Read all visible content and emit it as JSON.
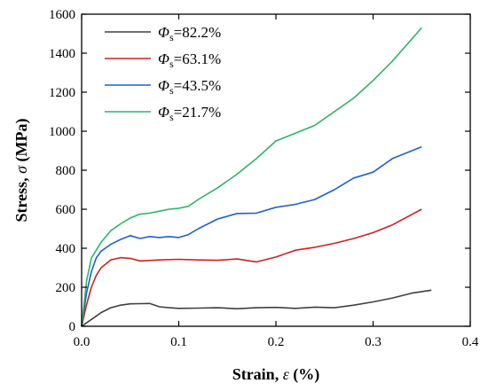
{
  "chart_data": {
    "type": "line",
    "xlabel": {
      "prefix": "Strain,  ",
      "symbol": "ε",
      "suffix": "  (%)"
    },
    "ylabel": {
      "prefix": "Stress, ",
      "symbol": "σ",
      "suffix": " (MPa)"
    },
    "xlim": [
      0,
      0.4
    ],
    "ylim": [
      0,
      1600
    ],
    "xticks": [
      "0.0",
      "0.1",
      "0.2",
      "0.3",
      "0.4"
    ],
    "yticks": [
      "0",
      "200",
      "400",
      "600",
      "800",
      "1000",
      "1200",
      "1400",
      "1600"
    ],
    "grid": false,
    "legend_position": "top-left",
    "series": [
      {
        "name": "Φs=82.2%",
        "label": {
          "symbol": "Φ",
          "sub": "s",
          "value": "=82.2%"
        },
        "color": "#404040",
        "x": [
          0,
          0.01,
          0.02,
          0.03,
          0.04,
          0.05,
          0.06,
          0.07,
          0.08,
          0.09,
          0.1,
          0.12,
          0.14,
          0.16,
          0.18,
          0.2,
          0.22,
          0.24,
          0.26,
          0.28,
          0.3,
          0.32,
          0.34,
          0.36
        ],
        "y": [
          0,
          35,
          70,
          95,
          108,
          115,
          116,
          117,
          100,
          95,
          92,
          93,
          95,
          90,
          95,
          97,
          92,
          98,
          95,
          108,
          125,
          145,
          170,
          185
        ]
      },
      {
        "name": "Φs=63.1%",
        "label": {
          "symbol": "Φ",
          "sub": "s",
          "value": "=63.1%"
        },
        "color": "#d02020",
        "x": [
          0,
          0.005,
          0.01,
          0.015,
          0.02,
          0.03,
          0.04,
          0.05,
          0.06,
          0.08,
          0.1,
          0.12,
          0.14,
          0.16,
          0.18,
          0.2,
          0.22,
          0.24,
          0.26,
          0.28,
          0.3,
          0.32,
          0.35
        ],
        "y": [
          0,
          110,
          200,
          260,
          300,
          340,
          352,
          348,
          335,
          340,
          343,
          340,
          338,
          345,
          330,
          355,
          390,
          405,
          425,
          450,
          480,
          520,
          600
        ]
      },
      {
        "name": "Φs=43.5%",
        "label": {
          "symbol": "Φ",
          "sub": "s",
          "value": "=43.5%"
        },
        "color": "#1f5fcf",
        "x": [
          0,
          0.005,
          0.01,
          0.015,
          0.02,
          0.03,
          0.04,
          0.05,
          0.06,
          0.07,
          0.08,
          0.09,
          0.1,
          0.11,
          0.12,
          0.14,
          0.16,
          0.18,
          0.2,
          0.22,
          0.24,
          0.26,
          0.28,
          0.3,
          0.32,
          0.35
        ],
        "y": [
          0,
          170,
          280,
          350,
          385,
          420,
          445,
          465,
          450,
          460,
          455,
          460,
          455,
          470,
          500,
          550,
          578,
          580,
          610,
          625,
          650,
          700,
          760,
          790,
          860,
          920
        ]
      },
      {
        "name": "Φs=21.7%",
        "label": {
          "symbol": "Φ",
          "sub": "s",
          "value": "=21.7%"
        },
        "color": "#2db36b",
        "x": [
          0,
          0.005,
          0.01,
          0.02,
          0.03,
          0.04,
          0.05,
          0.06,
          0.07,
          0.08,
          0.09,
          0.1,
          0.11,
          0.12,
          0.14,
          0.16,
          0.18,
          0.2,
          0.22,
          0.24,
          0.26,
          0.28,
          0.3,
          0.32,
          0.35
        ],
        "y": [
          0,
          230,
          350,
          430,
          490,
          525,
          555,
          575,
          580,
          590,
          600,
          605,
          615,
          650,
          710,
          780,
          860,
          950,
          990,
          1030,
          1100,
          1170,
          1260,
          1360,
          1530
        ]
      }
    ]
  }
}
